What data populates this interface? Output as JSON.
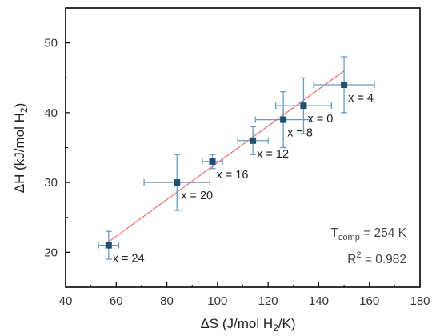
{
  "chart_data": {
    "type": "scatter",
    "title": "",
    "xlabel": {
      "pre": "ΔS (J/mol H",
      "sub": "2",
      "post": "/K)"
    },
    "ylabel": {
      "pre": "ΔH (kJ/mol H",
      "sub": "2",
      "post": ")"
    },
    "xlim": [
      40,
      180
    ],
    "ylim": [
      15,
      55
    ],
    "xticks": [
      40,
      60,
      80,
      100,
      120,
      140,
      160,
      180
    ],
    "yticks": [
      20,
      30,
      40,
      50
    ],
    "grid": false,
    "legend": "none",
    "points": [
      {
        "x": 150,
        "y": 44,
        "xerr": 12,
        "yerr": 4,
        "label": "x = 4"
      },
      {
        "x": 134,
        "y": 41,
        "xerr": 11,
        "yerr": 4,
        "label": "x = 0"
      },
      {
        "x": 126,
        "y": 39,
        "xerr": 11,
        "yerr": 4,
        "label": "x = 8"
      },
      {
        "x": 114,
        "y": 36,
        "xerr": 6,
        "yerr": 2,
        "label": "x = 12"
      },
      {
        "x": 98,
        "y": 33,
        "xerr": 4,
        "yerr": 1,
        "label": "x = 16"
      },
      {
        "x": 84,
        "y": 30,
        "xerr": 13,
        "yerr": 4,
        "label": "x = 20"
      },
      {
        "x": 57,
        "y": 21,
        "xerr": 4,
        "yerr": 2,
        "label": "x = 24"
      }
    ],
    "fit_line": {
      "x1": 57,
      "y1": 21.5,
      "x2": 150,
      "y2": 46
    },
    "annotation_temp": {
      "pre": "T",
      "sub": "comp",
      "post": " = 254 K"
    },
    "annotation_r2": {
      "pre": "R",
      "sup": "2",
      "post": " = 0.982"
    },
    "colors": {
      "marker": "#1f4e6e",
      "errorbar": "#6a9cc0",
      "fit": "#f08080",
      "axis": "#000000"
    }
  }
}
